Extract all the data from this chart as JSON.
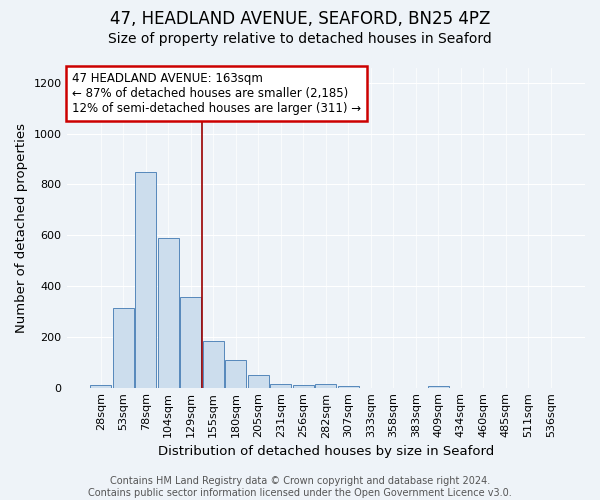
{
  "title": "47, HEADLAND AVENUE, SEAFORD, BN25 4PZ",
  "subtitle": "Size of property relative to detached houses in Seaford",
  "xlabel": "Distribution of detached houses by size in Seaford",
  "ylabel": "Number of detached properties",
  "footer_line1": "Contains HM Land Registry data © Crown copyright and database right 2024.",
  "footer_line2": "Contains public sector information licensed under the Open Government Licence v3.0.",
  "bin_labels": [
    "28sqm",
    "53sqm",
    "78sqm",
    "104sqm",
    "129sqm",
    "155sqm",
    "180sqm",
    "205sqm",
    "231sqm",
    "256sqm",
    "282sqm",
    "307sqm",
    "333sqm",
    "358sqm",
    "383sqm",
    "409sqm",
    "434sqm",
    "460sqm",
    "485sqm",
    "511sqm",
    "536sqm"
  ],
  "bar_values": [
    10,
    315,
    850,
    590,
    355,
    185,
    110,
    50,
    15,
    12,
    15,
    5,
    0,
    0,
    0,
    5,
    0,
    0,
    0,
    0,
    0
  ],
  "bar_color": "#ccdded",
  "bar_edge_color": "#5588bb",
  "vline_x": 4.5,
  "vline_color": "#990000",
  "annotation_line1": "47 HEADLAND AVENUE: 163sqm",
  "annotation_line2": "← 87% of detached houses are smaller (2,185)",
  "annotation_line3": "12% of semi-detached houses are larger (311) →",
  "annotation_box_color": "#ffffff",
  "annotation_box_edge": "#cc0000",
  "ylim": [
    0,
    1260
  ],
  "yticks": [
    0,
    200,
    400,
    600,
    800,
    1000,
    1200
  ],
  "plot_bg_color": "#eef3f8",
  "fig_bg_color": "#eef3f8",
  "grid_color": "#ffffff",
  "title_fontsize": 12,
  "subtitle_fontsize": 10,
  "axis_label_fontsize": 9.5,
  "tick_fontsize": 8,
  "annotation_fontsize": 8.5,
  "footer_fontsize": 7
}
